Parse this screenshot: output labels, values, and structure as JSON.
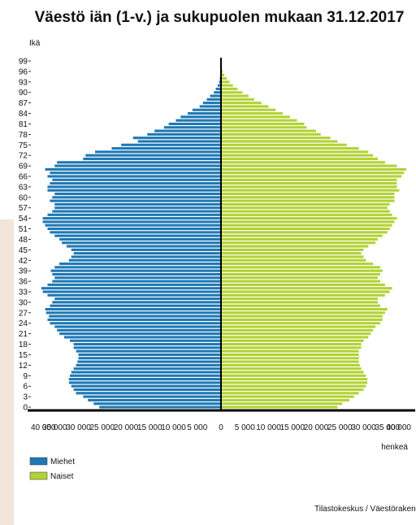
{
  "chart_data": {
    "type": "bar",
    "orientation": "horizontal-pyramid",
    "title": "Väestö iän (1-v.) ja sukupuolen mukaan 31.12.2017",
    "ylabel": "Ikä",
    "xlabel": "henkeä",
    "source": "Tilastokeskus / Väestörakenne",
    "ages": [
      0,
      1,
      2,
      3,
      4,
      5,
      6,
      7,
      8,
      9,
      10,
      11,
      12,
      13,
      14,
      15,
      16,
      17,
      18,
      19,
      20,
      21,
      22,
      23,
      24,
      25,
      26,
      27,
      28,
      29,
      30,
      31,
      32,
      33,
      34,
      35,
      36,
      37,
      38,
      39,
      40,
      41,
      42,
      43,
      44,
      45,
      46,
      47,
      48,
      49,
      50,
      51,
      52,
      53,
      54,
      55,
      56,
      57,
      58,
      59,
      60,
      61,
      62,
      63,
      64,
      65,
      66,
      67,
      68,
      69,
      70,
      71,
      72,
      73,
      74,
      75,
      76,
      77,
      78,
      79,
      80,
      81,
      82,
      83,
      84,
      85,
      86,
      87,
      88,
      89,
      90,
      91,
      92,
      93,
      94,
      95,
      96,
      97,
      98,
      99
    ],
    "age_tick_labels": [
      "0",
      "3",
      "6",
      "9",
      "12",
      "15",
      "18",
      "21",
      "24",
      "27",
      "30",
      "33",
      "36",
      "39",
      "42",
      "45",
      "48",
      "51",
      "54",
      "57",
      "60",
      "63",
      "66",
      "69",
      "72",
      "75",
      "78",
      "81",
      "84",
      "87",
      "90",
      "93",
      "96",
      "99"
    ],
    "x_tick_labels": [
      "40 000",
      "35 000",
      "30 000",
      "25 000",
      "20 000",
      "15 000",
      "10 000",
      "5 000",
      "0",
      "5 000",
      "10 000",
      "15 000",
      "20 000",
      "25 000",
      "30 000",
      "35 000",
      "40 000"
    ],
    "xlim": [
      -40000,
      40000
    ],
    "legend_position": "bottom-left",
    "series": [
      {
        "name": "Miehet",
        "color": "#1f78b4",
        "side": "left",
        "values": [
          25600,
          26800,
          28000,
          29000,
          30500,
          31000,
          31500,
          32000,
          32000,
          31800,
          31500,
          31000,
          30500,
          30200,
          30000,
          30000,
          30500,
          31000,
          31000,
          31800,
          33000,
          34000,
          34500,
          35000,
          36000,
          36500,
          36200,
          36800,
          37000,
          36000,
          35500,
          35000,
          36500,
          37500,
          37800,
          36500,
          35500,
          35000,
          35500,
          35800,
          35000,
          34000,
          32000,
          31500,
          31000,
          31500,
          32500,
          33500,
          34000,
          35000,
          36000,
          36500,
          37000,
          37500,
          37500,
          36500,
          35500,
          35000,
          35000,
          36000,
          35500,
          35000,
          36500,
          36500,
          36000,
          35500,
          36500,
          36000,
          37000,
          35000,
          34500,
          29000,
          28500,
          26500,
          23000,
          21000,
          17500,
          18500,
          15500,
          14000,
          12000,
          11000,
          9500,
          8500,
          7000,
          6000,
          4500,
          3800,
          3000,
          2300,
          1500,
          1100,
          700,
          400,
          250,
          150,
          70,
          30,
          15,
          8
        ]
      },
      {
        "name": "Naiset",
        "color": "#b2d235",
        "side": "right",
        "values": [
          24500,
          25500,
          27000,
          28000,
          29000,
          30000,
          30500,
          30800,
          30800,
          30500,
          30000,
          29500,
          29200,
          29000,
          29000,
          29000,
          29000,
          29500,
          29500,
          30000,
          31000,
          31500,
          32000,
          32500,
          33500,
          34000,
          34000,
          34500,
          35000,
          33500,
          33000,
          33000,
          34500,
          35500,
          36000,
          34500,
          33500,
          33000,
          33500,
          34000,
          33500,
          32000,
          30500,
          30000,
          29500,
          30000,
          31000,
          32500,
          33000,
          34000,
          35000,
          35500,
          36000,
          36500,
          37000,
          36000,
          35500,
          35000,
          35500,
          36500,
          36500,
          36500,
          37500,
          37000,
          37000,
          37000,
          38000,
          38500,
          39000,
          37000,
          34500,
          33000,
          32000,
          31000,
          29000,
          26500,
          24500,
          23000,
          21000,
          20000,
          18000,
          17500,
          16000,
          14500,
          13000,
          11500,
          10000,
          8500,
          7000,
          5800,
          4500,
          3500,
          2500,
          1800,
          1200,
          700,
          350,
          150,
          70,
          30
        ]
      }
    ]
  }
}
